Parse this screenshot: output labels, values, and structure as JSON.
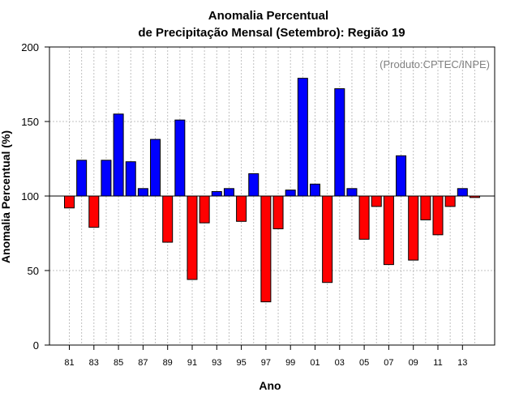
{
  "chart_data": {
    "type": "bar",
    "title_line1": "Anomalia Percentual",
    "title_line2": "de Precipitação Mensal (Setembro): Região 19",
    "credit": "(Produto:CPTEC/INPE)",
    "xlabel": "Ano",
    "ylabel": "Anomalia Percentual (%)",
    "ylim": [
      0,
      200
    ],
    "yticks": [
      "0",
      "50",
      "100",
      "150",
      "200"
    ],
    "baseline": 100,
    "grid": true,
    "colors": {
      "above": "#0000ff",
      "below": "#ff0000",
      "outline": "#000000",
      "grid": "#c0c0c0"
    },
    "x_tick_labels": [
      "81",
      "83",
      "85",
      "87",
      "89",
      "91",
      "93",
      "95",
      "97",
      "99",
      "01",
      "03",
      "05",
      "07",
      "09",
      "11",
      "13"
    ],
    "categories": [
      "1981",
      "1982",
      "1983",
      "1984",
      "1985",
      "1986",
      "1987",
      "1988",
      "1989",
      "1990",
      "1991",
      "1992",
      "1993",
      "1994",
      "1995",
      "1996",
      "1997",
      "1998",
      "1999",
      "2000",
      "2001",
      "2002",
      "2003",
      "2004",
      "2005",
      "2006",
      "2007",
      "2008",
      "2009",
      "2010",
      "2011",
      "2012",
      "2013",
      "2014"
    ],
    "values": [
      92,
      124,
      79,
      124,
      155,
      123,
      105,
      138,
      69,
      151,
      44,
      82,
      103,
      105,
      83,
      115,
      29,
      78,
      104,
      179,
      108,
      42,
      172,
      105,
      71,
      93,
      54,
      127,
      57,
      84,
      74,
      93,
      105,
      99
    ]
  }
}
